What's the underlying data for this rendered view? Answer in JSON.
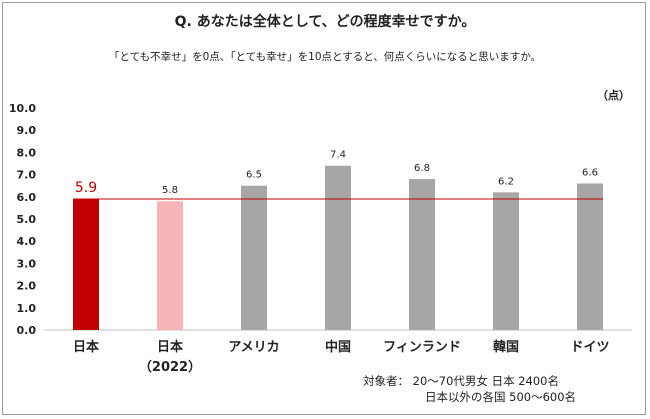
{
  "chart_data": {
    "type": "bar",
    "title": "Q. あなたは全体として、どの程度幸せですか。",
    "subtitle": "「とても不幸せ」を0点、「とても幸せ」を10点とすると、何点くらいになると思いますか。",
    "unit_label": "（点）",
    "categories": [
      {
        "line1": "日本",
        "line2": ""
      },
      {
        "line1": "日本",
        "line2": "（2022）"
      },
      {
        "line1": "アメリカ",
        "line2": ""
      },
      {
        "line1": "中国",
        "line2": ""
      },
      {
        "line1": "フィンランド",
        "line2": ""
      },
      {
        "line1": "韓国",
        "line2": ""
      },
      {
        "line1": "ドイツ",
        "line2": ""
      }
    ],
    "values": [
      5.9,
      5.8,
      6.5,
      7.4,
      6.8,
      6.2,
      6.6
    ],
    "value_labels": [
      "5.9",
      "5.8",
      "6.5",
      "7.4",
      "6.8",
      "6.2",
      "6.6"
    ],
    "bar_colors": [
      "#c00000",
      "#f4b5b9",
      "#a6a6a6",
      "#a6a6a6",
      "#a6a6a6",
      "#a6a6a6",
      "#a6a6a6"
    ],
    "highlight_index": 0,
    "reference_line": {
      "value": 5.9,
      "color": "#c00000"
    },
    "ylim": [
      0,
      10
    ],
    "y_ticks": [
      "0.0",
      "1.0",
      "2.0",
      "3.0",
      "4.0",
      "5.0",
      "6.0",
      "7.0",
      "8.0",
      "9.0",
      "10.0"
    ],
    "grid": false,
    "xlabel": "",
    "ylabel": ""
  },
  "notes": {
    "line1": "対象者：  20～70代男女  日本  2400名",
    "line2": "日本以外の各国  500～600名"
  }
}
